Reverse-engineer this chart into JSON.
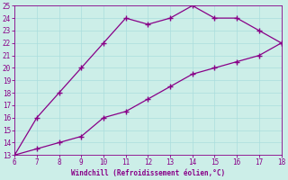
{
  "xlabel": "Windchill (Refroidissement éolien,°C)",
  "upper_line_x": [
    6,
    7,
    8,
    9,
    10,
    11,
    12,
    13,
    14,
    15,
    16,
    17,
    18
  ],
  "upper_line_y": [
    13,
    16,
    18,
    20,
    22,
    24,
    23.5,
    24,
    25,
    24,
    24,
    23,
    22
  ],
  "lower_line_x": [
    6,
    7,
    8,
    9,
    10,
    11,
    12,
    13,
    14,
    15,
    16,
    17,
    18
  ],
  "lower_line_y": [
    13,
    13.5,
    14,
    14.5,
    16,
    16.5,
    17.5,
    18.5,
    19.5,
    20,
    20.5,
    21,
    22
  ],
  "line_color": "#880088",
  "marker": "+",
  "markersize": 4,
  "markeredgewidth": 1.0,
  "linewidth": 0.9,
  "bg_color": "#cceee8",
  "grid_color": "#aadddd",
  "tick_color": "#880088",
  "label_color": "#880088",
  "xlim": [
    6,
    18
  ],
  "ylim": [
    13,
    25
  ],
  "xticks": [
    6,
    7,
    8,
    9,
    10,
    11,
    12,
    13,
    14,
    15,
    16,
    17,
    18
  ],
  "yticks": [
    13,
    14,
    15,
    16,
    17,
    18,
    19,
    20,
    21,
    22,
    23,
    24,
    25
  ],
  "tick_fontsize": 5.5,
  "xlabel_fontsize": 5.5
}
